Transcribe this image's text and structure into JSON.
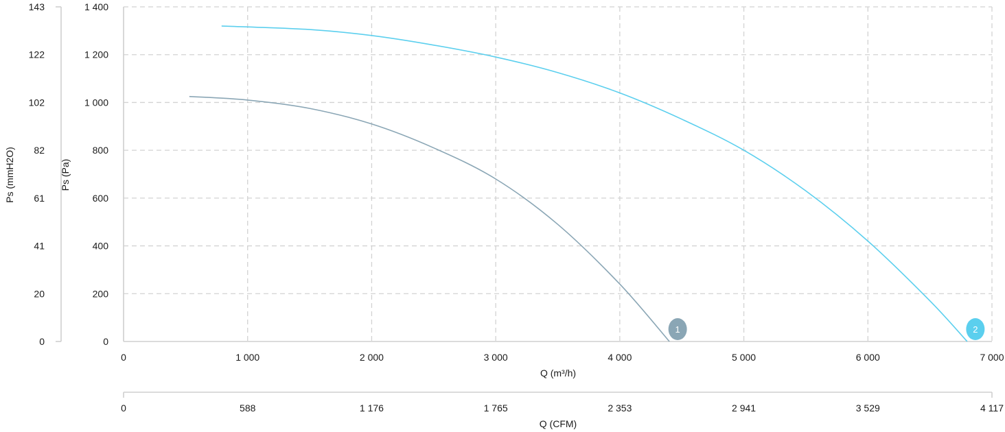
{
  "chart_data": {
    "type": "line",
    "title": "",
    "xlabel": "Q (m³/h)",
    "xlabel_secondary": "Q (CFM)",
    "ylabel": "Ps (Pa)",
    "ylabel_secondary": "Ps (mmH2O)",
    "xlim": [
      0,
      7000
    ],
    "ylim": [
      0,
      1400
    ],
    "grid": true,
    "x_ticks": [
      0,
      1000,
      2000,
      3000,
      4000,
      5000,
      6000,
      7000
    ],
    "x_tick_labels": [
      "0",
      "1 000",
      "2 000",
      "3 000",
      "4 000",
      "5 000",
      "6 000",
      "7 000"
    ],
    "x2_tick_labels": [
      "0",
      "588",
      "1 176",
      "1 765",
      "2 353",
      "2 941",
      "3 529",
      "4 117"
    ],
    "y_ticks": [
      0,
      200,
      400,
      600,
      800,
      1000,
      1200,
      1400
    ],
    "y_tick_labels": [
      "0",
      "200",
      "400",
      "600",
      "800",
      "1 000",
      "1 200",
      "1 400"
    ],
    "y2_tick_labels": [
      "0",
      "20",
      "41",
      "61",
      "82",
      "102",
      "122",
      "143"
    ],
    "series": [
      {
        "marker_label": "1",
        "color": "#8aa6b5",
        "x": [
          530,
          1000,
          1500,
          2000,
          2500,
          3000,
          3500,
          4000,
          4400
        ],
        "y": [
          1025,
          1010,
          975,
          910,
          810,
          680,
          490,
          240,
          0
        ]
      },
      {
        "marker_label": "2",
        "color": "#5bcfee",
        "x": [
          790,
          1500,
          2000,
          2500,
          3000,
          3500,
          4000,
          4500,
          5000,
          5500,
          6000,
          6500,
          6800
        ],
        "y": [
          1320,
          1305,
          1280,
          1240,
          1190,
          1125,
          1040,
          930,
          800,
          630,
          420,
          170,
          0
        ]
      }
    ]
  }
}
